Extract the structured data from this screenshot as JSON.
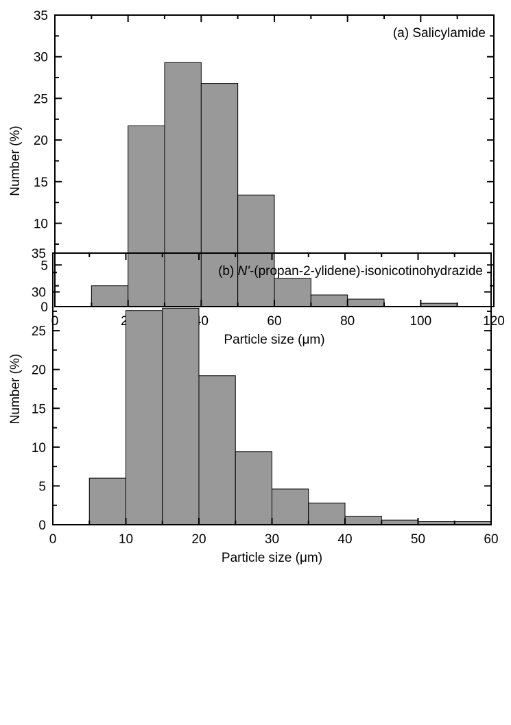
{
  "chart_data": [
    {
      "type": "bar",
      "annotation": "(a) Salicylamide",
      "annotation_prefix": "",
      "annotation_italic": "",
      "annotation_rest": "",
      "xlabel": "Particle size (μm)",
      "ylabel": "Number (%)",
      "xlim": [
        0,
        120
      ],
      "ylim": [
        0,
        35
      ],
      "xticks": [
        0,
        20,
        40,
        60,
        80,
        100,
        120
      ],
      "yticks": [
        0,
        5,
        10,
        15,
        20,
        25,
        30,
        35
      ],
      "bin_edges": [
        10,
        20,
        30,
        40,
        50,
        60,
        70,
        80,
        90,
        100,
        110
      ],
      "values": [
        2.5,
        21.7,
        29.3,
        26.8,
        13.4,
        3.4,
        1.4,
        0.9,
        0.0,
        0.4
      ],
      "bar_color": "#999999",
      "grid": false
    },
    {
      "type": "bar",
      "annotation": "",
      "annotation_prefix": "(b) ",
      "annotation_italic": "N'",
      "annotation_rest": "-(propan-2-ylidene)-isonicotinohydrazide",
      "xlabel": "Particle size (μm)",
      "ylabel": "Number (%)",
      "xlim": [
        0,
        60
      ],
      "ylim": [
        0,
        35
      ],
      "xticks": [
        0,
        10,
        20,
        30,
        40,
        50,
        60
      ],
      "yticks": [
        0,
        5,
        10,
        15,
        20,
        25,
        30,
        35
      ],
      "bin_edges": [
        5,
        10,
        15,
        20,
        25,
        30,
        35,
        40,
        45,
        50,
        55,
        60
      ],
      "values": [
        6.0,
        27.6,
        27.9,
        19.2,
        9.4,
        4.6,
        2.8,
        1.1,
        0.6,
        0.4,
        0.4
      ],
      "bar_color": "#999999",
      "grid": false
    }
  ]
}
